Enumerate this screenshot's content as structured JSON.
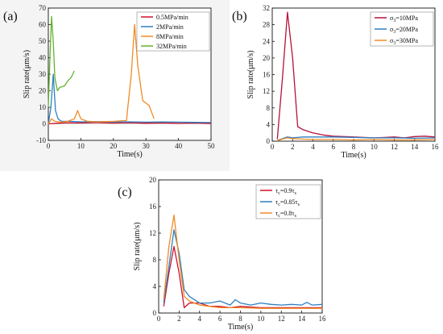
{
  "chart_data": [
    {
      "panel": "(a)",
      "type": "line",
      "xlabel": "Time(s)",
      "ylabel": "Slip rate(μm/s)",
      "xlim": [
        0,
        50
      ],
      "ylim": [
        -10,
        70
      ],
      "xticks": [
        0,
        10,
        20,
        30,
        40,
        50
      ],
      "yticks": [
        -10,
        0,
        10,
        20,
        30,
        40,
        50,
        60,
        70
      ],
      "legend_position": "top-right",
      "series": [
        {
          "name": "0.5MPa/min",
          "color": "#d0112b",
          "x": [
            0,
            3,
            6,
            10,
            15,
            20,
            25,
            30,
            35,
            40,
            45,
            50
          ],
          "y": [
            0,
            0.4,
            0.7,
            0.6,
            0.8,
            0.5,
            0.7,
            0.4,
            0.6,
            0.3,
            0.5,
            0.2
          ]
        },
        {
          "name": "2MPa/min",
          "color": "#2f7fc1",
          "x": [
            0,
            0.8,
            1.5,
            2.2,
            3,
            4,
            6,
            10,
            15,
            20,
            25,
            30,
            35,
            40,
            45,
            50
          ],
          "y": [
            0,
            10,
            30,
            8,
            3,
            1.5,
            1.5,
            1.2,
            1.3,
            1.1,
            1.2,
            1.0,
            1.1,
            1.0,
            0.9,
            0.8
          ]
        },
        {
          "name": "8MPa/min",
          "color": "#f08a24",
          "x": [
            0,
            1,
            2,
            4,
            6,
            8,
            9,
            10,
            12,
            15,
            20,
            24,
            25.5,
            26.5,
            27.5,
            29,
            31,
            32.5
          ],
          "y": [
            0,
            3,
            1.5,
            1,
            1.5,
            3,
            8,
            3,
            1.5,
            1.2,
            1.5,
            2,
            30,
            60,
            35,
            14,
            11,
            3
          ]
        },
        {
          "name": "32MPa/min",
          "color": "#63b32e",
          "x": [
            0,
            0.5,
            1,
            1.5,
            2,
            2.8,
            3.5,
            5,
            6,
            7,
            8
          ],
          "y": [
            10,
            40,
            65,
            50,
            28,
            20,
            22,
            23,
            26,
            28,
            32
          ]
        }
      ]
    },
    {
      "panel": "(b)",
      "type": "line",
      "xlabel": "Time(s)",
      "ylabel": "Slip rate(μm/s)",
      "xlim": [
        0,
        16
      ],
      "ylim": [
        0,
        32
      ],
      "xticks": [
        0,
        2,
        4,
        6,
        8,
        10,
        12,
        14,
        16
      ],
      "yticks": [
        0,
        4,
        8,
        12,
        16,
        20,
        24,
        28,
        32
      ],
      "legend_position": "top-right",
      "series": [
        {
          "name": "σ₃=10MPa",
          "sym": "σ",
          "sub": "3",
          "rest": "=10MPa",
          "color": "#b5123a",
          "x": [
            0.5,
            1,
            1.5,
            2,
            2.5,
            3,
            4,
            5,
            6,
            8,
            10,
            11,
            12,
            13,
            14,
            15,
            16
          ],
          "y": [
            0.5,
            15,
            31,
            20,
            3.5,
            2.8,
            2,
            1.5,
            1.2,
            1.0,
            0.8,
            0.9,
            1.0,
            0.8,
            1.1,
            1.2,
            1.0
          ]
        },
        {
          "name": "σ₃=20MPa",
          "sym": "σ",
          "sub": "3",
          "rest": "=20MPa",
          "color": "#2f7fc1",
          "x": [
            0.5,
            1,
            1.5,
            2,
            3,
            4,
            6,
            8,
            10,
            12,
            14,
            16
          ],
          "y": [
            0.2,
            0.6,
            1.0,
            0.8,
            1.0,
            1.0,
            1.0,
            0.9,
            0.8,
            0.8,
            0.7,
            0.8
          ]
        },
        {
          "name": "σ₃=30MPa",
          "sym": "σ",
          "sub": "3",
          "rest": "=30MPa",
          "color": "#f08a24",
          "x": [
            0.5,
            1,
            1.5,
            2,
            3,
            4,
            6,
            8,
            10,
            12,
            14,
            16
          ],
          "y": [
            0.1,
            0.5,
            0.8,
            0.6,
            0.5,
            0.4,
            0.4,
            0.3,
            0.4,
            0.3,
            0.3,
            0.4
          ]
        }
      ]
    },
    {
      "panel": "(c)",
      "type": "line",
      "xlabel": "Time(s)",
      "ylabel": "Slip rate(μm/s)",
      "xlim": [
        0,
        16
      ],
      "ylim": [
        0,
        20
      ],
      "xticks": [
        0,
        2,
        4,
        6,
        8,
        10,
        12,
        14,
        16
      ],
      "yticks": [
        0,
        4,
        8,
        12,
        16,
        20
      ],
      "legend_position": "top-right",
      "series": [
        {
          "name": "τc=0.9τs",
          "sym": "τ",
          "sub": "c",
          "rest": "=0.9τ",
          "sub2": "s",
          "color": "#d0112b",
          "x": [
            0.5,
            1,
            1.5,
            2,
            2.5,
            3,
            4,
            5,
            6,
            7,
            8,
            10,
            12,
            14,
            16
          ],
          "y": [
            1,
            6,
            10,
            6,
            0.8,
            1.5,
            1.5,
            1.0,
            1.0,
            0.8,
            1.0,
            0.8,
            0.8,
            0.8,
            0.8
          ]
        },
        {
          "name": "τc=0.85τs",
          "sym": "τ",
          "sub": "c",
          "rest": "=0.85τ",
          "sub2": "s",
          "color": "#2f7fc1",
          "x": [
            0.5,
            1,
            1.5,
            2,
            2.5,
            3,
            4,
            5,
            6,
            7,
            7.5,
            8,
            9,
            10,
            11,
            12,
            13,
            14,
            14.5,
            15,
            16
          ],
          "y": [
            1.5,
            7,
            12.5,
            9,
            3.5,
            2.5,
            1.5,
            1.5,
            1.8,
            1.2,
            2.0,
            1.5,
            1.2,
            1.5,
            1.3,
            1.2,
            1.3,
            1.2,
            1.6,
            1.2,
            1.3
          ]
        },
        {
          "name": "τc=0.8τs",
          "sym": "τ",
          "sub": "c",
          "rest": "=0.8τ",
          "sub2": "s",
          "color": "#f08a24",
          "x": [
            0.5,
            1,
            1.5,
            2,
            2.5,
            3,
            4,
            5,
            6,
            8,
            10,
            12,
            14,
            16
          ],
          "y": [
            2,
            10,
            14.7,
            8,
            2.5,
            1.8,
            1.2,
            1.0,
            0.8,
            0.8,
            0.7,
            0.7,
            0.7,
            0.7
          ]
        }
      ]
    }
  ]
}
